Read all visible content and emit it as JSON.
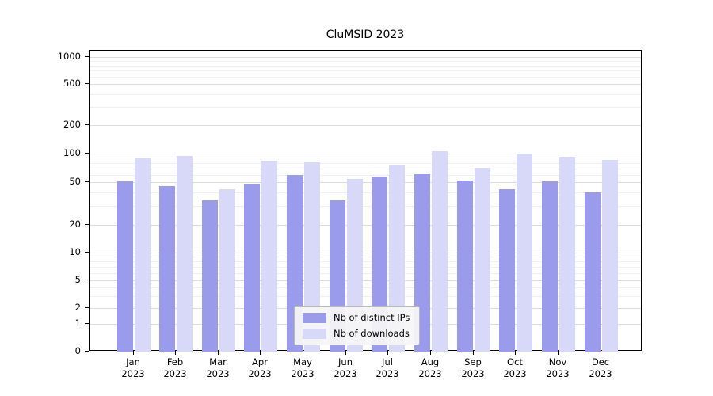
{
  "chart_data": {
    "type": "bar",
    "title": "CluMSID 2023",
    "categories": [
      "Jan",
      "Feb",
      "Mar",
      "Apr",
      "May",
      "Jun",
      "Jul",
      "Aug",
      "Sep",
      "Oct",
      "Nov",
      "Dec"
    ],
    "year_label": "2023",
    "series": [
      {
        "name": "Nb of distinct IPs",
        "color": "#9b9bec",
        "values": [
          51,
          46,
          34,
          48,
          60,
          34,
          57,
          61,
          52,
          43,
          51,
          40
        ]
      },
      {
        "name": "Nb of downloads",
        "color": "#d8d8f8",
        "values": [
          89,
          95,
          43,
          84,
          81,
          54,
          77,
          105,
          71,
          100,
          93,
          86
        ]
      }
    ],
    "yscale": "symlog",
    "yticks": [
      0,
      1,
      2,
      5,
      10,
      20,
      50,
      100,
      200,
      500,
      1000
    ],
    "ylim": [
      0,
      1400
    ],
    "grid": true,
    "legend_position": "lower center",
    "axis_color": "#000000",
    "grid_major_color": "#dcdcdc",
    "grid_minor_color": "#f0f0f0"
  }
}
